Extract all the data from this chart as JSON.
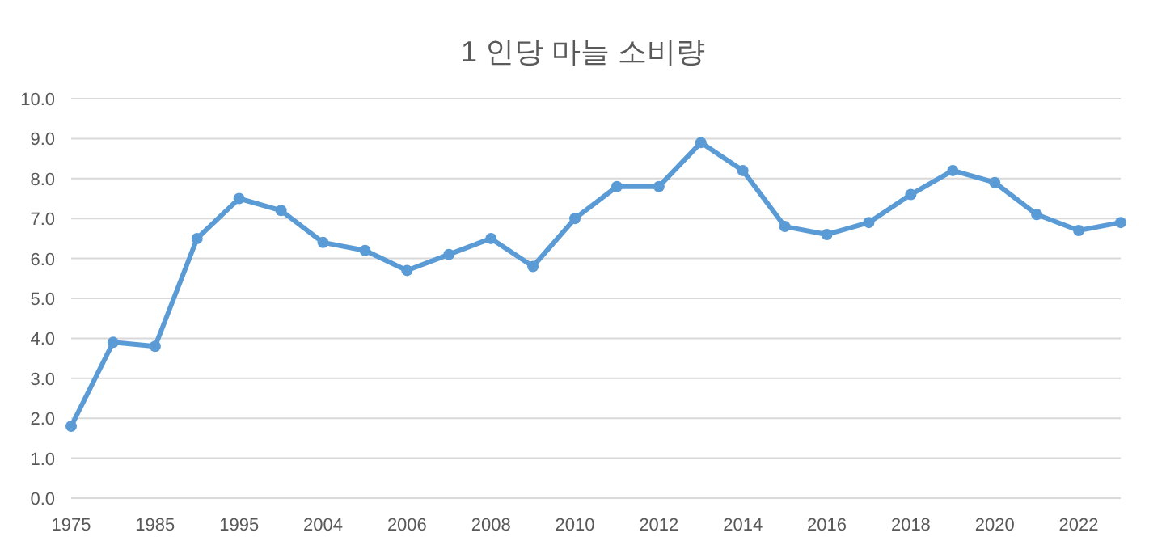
{
  "chart_data": {
    "type": "line",
    "title": "1 인당 마늘 소비량",
    "categories": [
      "1975",
      null,
      "1985",
      null,
      "1995",
      null,
      "2004",
      null,
      "2006",
      null,
      "2008",
      null,
      "2010",
      null,
      "2012",
      null,
      "2014",
      null,
      "2016",
      null,
      "2018",
      null,
      "2020",
      null,
      "2022",
      null
    ],
    "series": [
      {
        "color": "#5b9bd5",
        "values": [
          1.8,
          3.9,
          3.8,
          6.5,
          7.5,
          7.2,
          6.4,
          6.2,
          5.7,
          6.1,
          6.5,
          5.8,
          7.0,
          7.8,
          7.8,
          8.9,
          8.2,
          6.8,
          6.6,
          6.9,
          7.6,
          8.2,
          7.9,
          7.1,
          6.7,
          6.9
        ]
      }
    ],
    "ylim": [
      0,
      10
    ],
    "yticks": [
      {
        "value": 0,
        "label": "0.0"
      },
      {
        "value": 1,
        "label": "1.0"
      },
      {
        "value": 2,
        "label": "2.0"
      },
      {
        "value": 3,
        "label": "3.0"
      },
      {
        "value": 4,
        "label": "4.0"
      },
      {
        "value": 5,
        "label": "5.0"
      },
      {
        "value": 6,
        "label": "6.0"
      },
      {
        "value": 7,
        "label": "7.0"
      },
      {
        "value": 8,
        "label": "8.0"
      },
      {
        "value": 9,
        "label": "9.0"
      },
      {
        "value": 10,
        "label": "10.0"
      }
    ],
    "grid": "y",
    "marker": "circle",
    "line_style": "solid"
  }
}
